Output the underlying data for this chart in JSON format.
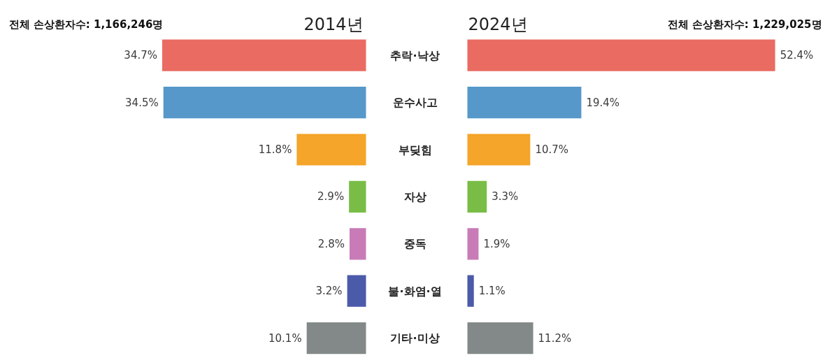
{
  "chart_data": [
    {
      "type": "bar",
      "orientation": "horizontal",
      "title": "2014년",
      "subtitle": "전체 손상환자수: 1,166,246명",
      "categories": [
        "추락·낙상",
        "운수사고",
        "부딪힘",
        "자상",
        "중독",
        "불·화염·열",
        "기타·미상"
      ],
      "values": [
        34.7,
        34.5,
        11.8,
        2.9,
        2.8,
        3.2,
        10.1
      ],
      "colors": [
        "#e96b62",
        "#5698c9",
        "#f4a52a",
        "#79bd46",
        "#c87bb7",
        "#4c5aaa",
        "#838988"
      ],
      "value_labels": [
        "34.7%",
        "34.5%",
        "11.8%",
        "2.9%",
        "2.8%",
        "3.2%",
        "10.1%"
      ],
      "tick_labels": "y"
    },
    {
      "type": "bar",
      "orientation": "horizontal",
      "title": "2024년",
      "subtitle": "전체 손상환자수: 1,229,025명",
      "categories": [
        "추락·낙상",
        "운수사고",
        "부딪힘",
        "자상",
        "중독",
        "불·화염·열",
        "기타·미상"
      ],
      "values": [
        52.4,
        19.4,
        10.7,
        3.3,
        1.9,
        1.1,
        11.2
      ],
      "colors": [
        "#e96b62",
        "#5698c9",
        "#f4a52a",
        "#79bd46",
        "#c87bb7",
        "#4c5aaa",
        "#838988"
      ],
      "value_labels": [
        "52.4%",
        "19.4%",
        "10.7%",
        "3.3%",
        "1.9%",
        "1.1%",
        "11.2%"
      ],
      "tick_labels": false
    }
  ]
}
